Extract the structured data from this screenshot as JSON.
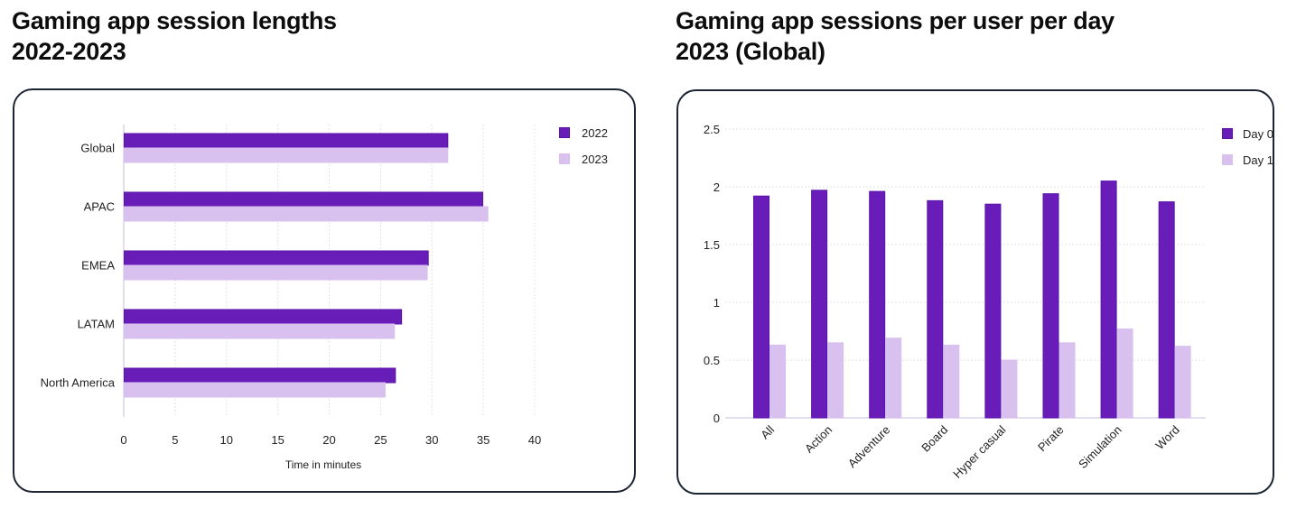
{
  "colors": {
    "primary": "#681db8",
    "primary_stroke": "#5a12a8",
    "secondary": "#d8c1ee",
    "grid": "#e3e3e3",
    "axis": "#d9d3ea",
    "card_border": "#1d2433"
  },
  "chart_data": [
    {
      "type": "bar",
      "orientation": "horizontal",
      "title": "Gaming app session lengths",
      "subtitle": "2022-2023",
      "categories": [
        "Global",
        "APAC",
        "EMEA",
        "LATAM",
        "North America"
      ],
      "series": [
        {
          "name": "2022",
          "values": [
            31.5,
            34.9,
            29.6,
            27.0,
            26.4
          ]
        },
        {
          "name": "2023",
          "values": [
            31.5,
            35.4,
            29.5,
            26.3,
            25.4
          ]
        }
      ],
      "xlabel": "Time in minutes",
      "ylabel": "",
      "xlim": [
        0,
        40
      ],
      "xticks": [
        "0",
        "5",
        "10",
        "15",
        "20",
        "25",
        "30",
        "35",
        "40"
      ],
      "grid": true,
      "legend_position": "top-right"
    },
    {
      "type": "bar",
      "orientation": "vertical",
      "title": "Gaming app sessions per user per day",
      "subtitle": "2023 (Global)",
      "categories": [
        "All",
        "Action",
        "Adventure",
        "Board",
        "Hyper casual",
        "Pirate",
        "Simulation",
        "Word"
      ],
      "series": [
        {
          "name": "Day 0",
          "values": [
            1.92,
            1.97,
            1.96,
            1.88,
            1.85,
            1.94,
            2.05,
            1.87
          ]
        },
        {
          "name": "Day 1",
          "values": [
            0.63,
            0.65,
            0.69,
            0.63,
            0.5,
            0.65,
            0.77,
            0.62
          ]
        }
      ],
      "xlabel": "",
      "ylabel": "",
      "ylim": [
        0,
        2.5
      ],
      "yticks": [
        "0",
        "0.5",
        "1",
        "1.5",
        "2",
        "2.5"
      ],
      "grid": true,
      "legend_position": "top-right"
    }
  ]
}
